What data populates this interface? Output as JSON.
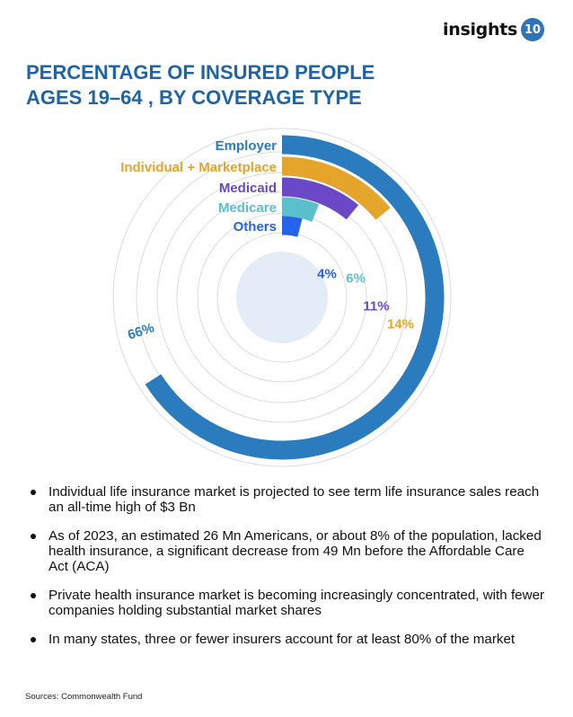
{
  "brand": {
    "name": "insights",
    "badge": "10",
    "accent": "#2f73b8"
  },
  "title": "PERCENTAGE OF INSURED PEOPLE AGES 19–64 , BY COVERAGE TYPE",
  "chart_data": {
    "type": "radial-bar",
    "title": "PERCENTAGE OF INSURED PEOPLE AGES 19–64 , BY COVERAGE TYPE",
    "unit": "%",
    "series": [
      {
        "name": "Employer",
        "value": 66,
        "label": "66%",
        "color": "#2b7bbf"
      },
      {
        "name": "Individual + Marketplace",
        "value": 14,
        "label": "14%",
        "color": "#e5a52a"
      },
      {
        "name": "Medicaid",
        "value": 11,
        "label": "11%",
        "color": "#6b48c8"
      },
      {
        "name": "Medicare",
        "value": 6,
        "label": "6%",
        "color": "#5bbfcc"
      },
      {
        "name": "Others",
        "value": 4,
        "label": "4%",
        "color": "#2563eb"
      }
    ]
  },
  "bullets": [
    "Individual life insurance market is projected to see term life insurance sales reach an all-time high of $3 Bn",
    "As of 2023, an estimated 26 Mn Americans, or about 8% of the population, lacked health insurance, a significant decrease from 49 Mn before the Affordable Care Act (ACA)",
    "Private health insurance market is becoming increasingly concentrated, with fewer companies holding substantial market shares",
    "In many states, three or fewer insurers account for at least 80% of the market"
  ],
  "source": "Sources: Commonwealth Fund"
}
